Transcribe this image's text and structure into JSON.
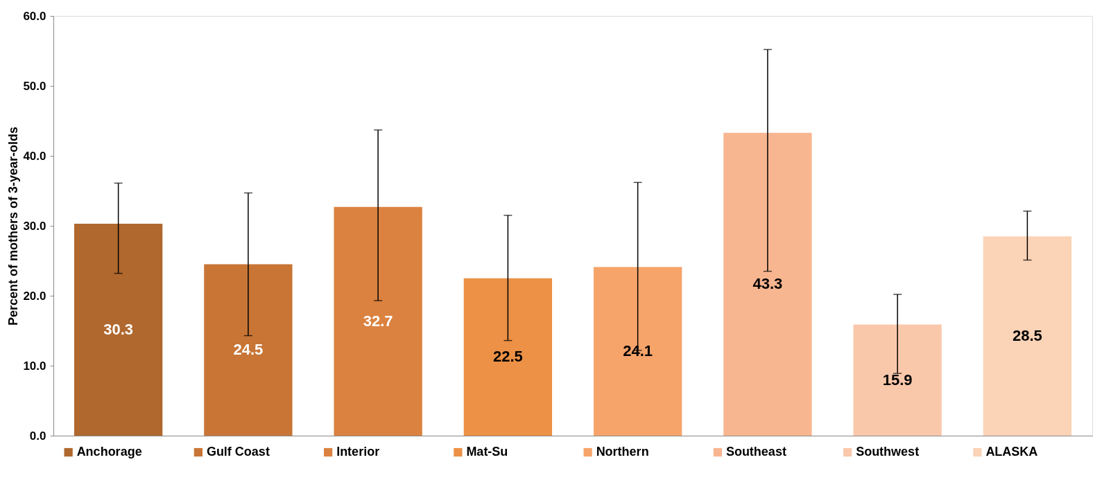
{
  "chart_data": {
    "type": "bar",
    "ylabel": "Percent of mothers of 3-year-olds",
    "categories": [
      "Anchorage",
      "Gulf Coast",
      "Interior",
      "Mat-Su",
      "Northern",
      "Southeast",
      "Southwest",
      "ALASKA"
    ],
    "values": [
      30.3,
      24.5,
      32.7,
      22.5,
      24.1,
      43.3,
      15.9,
      28.5
    ],
    "colors": [
      "#b0682e",
      "#c87536",
      "#db8240",
      "#ec9145",
      "#f6a46a",
      "#f8b690",
      "#f9c8ab",
      "#fbd3b6"
    ],
    "errors": [
      [
        23.2,
        36.1
      ],
      [
        14.3,
        34.7
      ],
      [
        19.3,
        43.7
      ],
      [
        13.6,
        31.5
      ],
      [
        12.2,
        36.2
      ],
      [
        23.5,
        55.2
      ],
      [
        8.9,
        20.2
      ],
      [
        25.1,
        32.1
      ]
    ],
    "ylim": [
      0,
      60
    ],
    "yticks": [
      {
        "value": 0,
        "label": "0.0"
      },
      {
        "value": 10,
        "label": "10.0"
      },
      {
        "value": 20,
        "label": "20.0"
      },
      {
        "value": 30,
        "label": "30.0"
      },
      {
        "value": 40,
        "label": "40.0"
      },
      {
        "value": 50,
        "label": "50.0"
      },
      {
        "value": 60,
        "label": "60.0"
      }
    ],
    "data_labels": true,
    "grid": false,
    "tick_labels": "y"
  }
}
